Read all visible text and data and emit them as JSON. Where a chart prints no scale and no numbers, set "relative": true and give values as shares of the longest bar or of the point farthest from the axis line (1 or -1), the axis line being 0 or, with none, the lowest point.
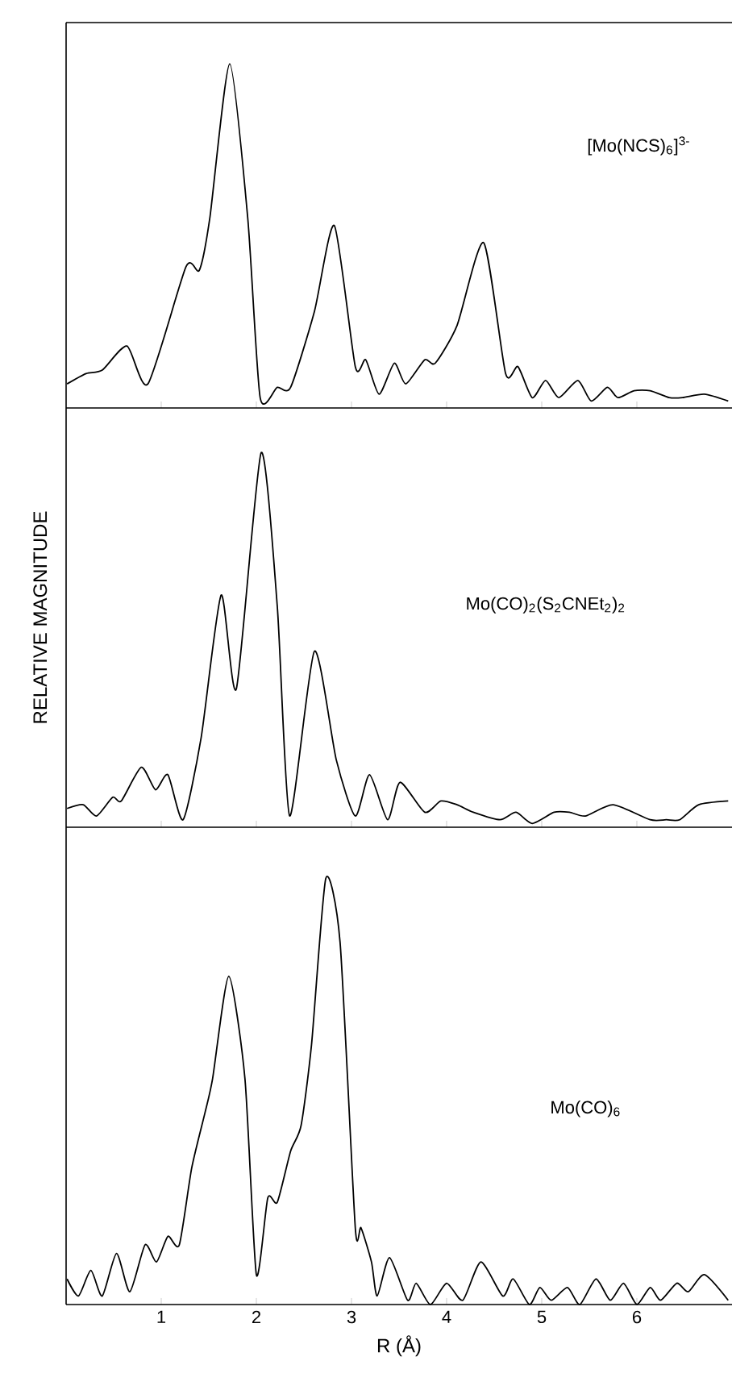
{
  "chart_data": [
    {
      "type": "line",
      "relative": true,
      "xlim": [
        0,
        7
      ],
      "xticks": [
        1,
        2,
        3,
        4,
        5,
        6
      ],
      "tick_labels": false,
      "series": [
        {
          "name": "[Mo(NCS)$_{6}$]$^{3-}$",
          "color": "#000000",
          "x": [
            0.01,
            0.21,
            0.38,
            0.64,
            0.86,
            1.26,
            1.4,
            1.51,
            1.72,
            1.91,
            2.04,
            2.22,
            2.36,
            2.61,
            2.82,
            3.04,
            3.15,
            3.29,
            3.45,
            3.57,
            3.77,
            3.88,
            4.11,
            4.39,
            4.62,
            4.75,
            4.9,
            5.04,
            5.18,
            5.38,
            5.52,
            5.69,
            5.8,
            5.97,
            6.14,
            6.34,
            6.48,
            6.71,
            6.96
          ],
          "values": [
            0.07,
            0.1,
            0.11,
            0.18,
            0.07,
            0.41,
            0.4,
            0.55,
            1.0,
            0.55,
            0.03,
            0.06,
            0.06,
            0.28,
            0.53,
            0.12,
            0.14,
            0.04,
            0.13,
            0.07,
            0.14,
            0.13,
            0.24,
            0.48,
            0.1,
            0.12,
            0.03,
            0.08,
            0.03,
            0.08,
            0.02,
            0.06,
            0.03,
            0.05,
            0.05,
            0.03,
            0.03,
            0.04,
            0.02
          ]
        }
      ]
    },
    {
      "type": "line",
      "relative": true,
      "xlim": [
        0,
        7
      ],
      "xticks": [
        1,
        2,
        3,
        4,
        5,
        6
      ],
      "tick_labels": false,
      "ylabel": "RELATIVE MAGNITUDE",
      "series": [
        {
          "name": "Mo(CO)$_{2}$(S$_{2}$CNEt$_{2}$)$_{2}$",
          "color": "#000000",
          "x": [
            0.01,
            0.18,
            0.32,
            0.49,
            0.58,
            0.79,
            0.94,
            1.07,
            1.23,
            1.42,
            1.63,
            1.79,
            2.05,
            2.22,
            2.35,
            2.61,
            2.84,
            3.04,
            3.19,
            3.38,
            3.51,
            3.77,
            3.94,
            4.11,
            4.28,
            4.56,
            4.73,
            4.9,
            5.13,
            5.29,
            5.46,
            5.75,
            6.14,
            6.31,
            6.45,
            6.65,
            6.96
          ],
          "values": [
            0.05,
            0.06,
            0.03,
            0.08,
            0.07,
            0.16,
            0.1,
            0.14,
            0.02,
            0.24,
            0.62,
            0.37,
            1.0,
            0.59,
            0.03,
            0.47,
            0.18,
            0.03,
            0.14,
            0.02,
            0.12,
            0.04,
            0.07,
            0.06,
            0.04,
            0.02,
            0.04,
            0.01,
            0.04,
            0.04,
            0.03,
            0.06,
            0.02,
            0.02,
            0.02,
            0.06,
            0.07
          ]
        }
      ]
    },
    {
      "type": "line",
      "relative": true,
      "xlim": [
        0,
        7
      ],
      "xticks": [
        1,
        2,
        3,
        4,
        5,
        6
      ],
      "tick_labels": "x",
      "xlabel": "R (Å)",
      "series": [
        {
          "name": "Mo(CO)$_{6}$",
          "color": "#000000",
          "x": [
            0.01,
            0.13,
            0.26,
            0.38,
            0.53,
            0.67,
            0.83,
            0.95,
            1.07,
            1.19,
            1.32,
            1.46,
            1.54,
            1.71,
            1.88,
            2.0,
            2.12,
            2.22,
            2.36,
            2.47,
            2.58,
            2.73,
            2.88,
            3.04,
            3.1,
            3.21,
            3.27,
            3.4,
            3.59,
            3.68,
            3.83,
            4.0,
            4.17,
            4.36,
            4.59,
            4.7,
            4.87,
            4.98,
            5.1,
            5.27,
            5.4,
            5.57,
            5.72,
            5.86,
            6.0,
            6.14,
            6.25,
            6.42,
            6.54,
            6.71,
            6.96
          ],
          "values": [
            0.06,
            0.02,
            0.08,
            0.02,
            0.12,
            0.03,
            0.14,
            0.1,
            0.16,
            0.14,
            0.32,
            0.45,
            0.53,
            0.77,
            0.53,
            0.07,
            0.25,
            0.24,
            0.36,
            0.42,
            0.61,
            1.0,
            0.85,
            0.18,
            0.18,
            0.1,
            0.02,
            0.11,
            0.01,
            0.05,
            0.0,
            0.05,
            0.01,
            0.1,
            0.02,
            0.06,
            0.0,
            0.04,
            0.01,
            0.04,
            0.0,
            0.06,
            0.01,
            0.05,
            0.0,
            0.04,
            0.01,
            0.05,
            0.03,
            0.07,
            0.01
          ]
        }
      ]
    }
  ]
}
